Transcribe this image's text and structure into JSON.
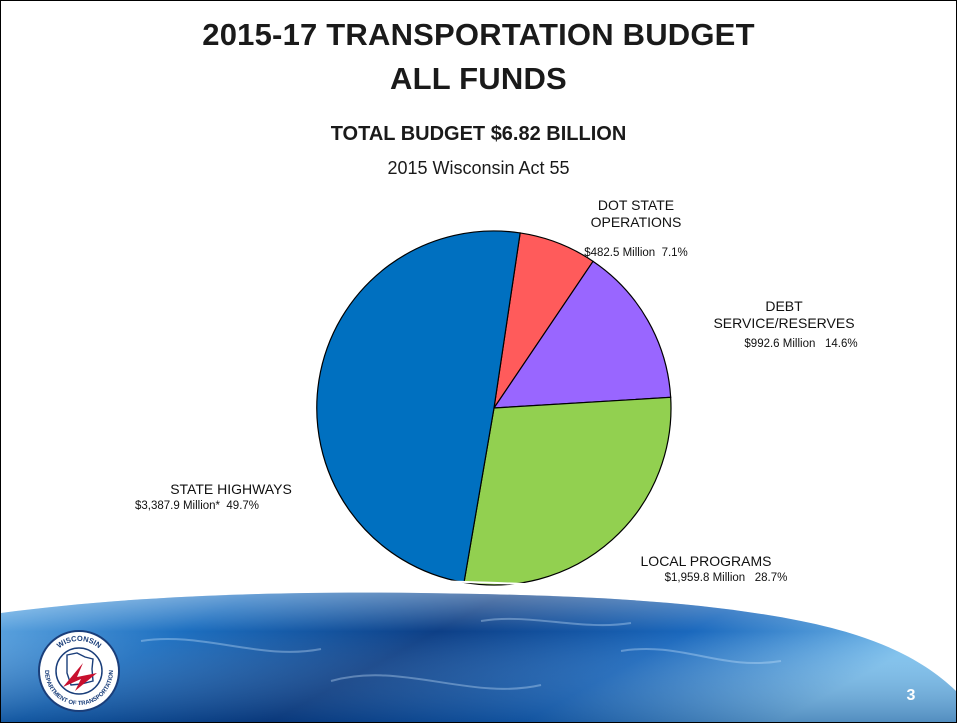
{
  "slide": {
    "title_line1": "2015-17 TRANSPORTATION BUDGET",
    "title_line2": "ALL FUNDS",
    "subtitle": "TOTAL BUDGET $6.82 BILLION",
    "caption": "2015 Wisconsin Act 55",
    "page_number": "3",
    "logo_text_top": "WISCONSIN",
    "logo_text_bottom": "DEPARTMENT OF TRANSPORTATION"
  },
  "colors": {
    "state_highways": "#0070c0",
    "dot_state_operations": "#ff5b5b",
    "debt_service_reserves": "#9966ff",
    "local_programs": "#92d050",
    "banner_blue": "#1560b0",
    "logo_red": "#c8102e"
  },
  "chart_data": {
    "type": "pie",
    "title": "2015-17 TRANSPORTATION BUDGET ALL FUNDS",
    "units": "Million",
    "slices": [
      {
        "key": "dot_state_operations",
        "label_line1": "DOT STATE",
        "label_line2": "OPERATIONS",
        "amount": "$482.5 Million",
        "percent_text": "7.1%",
        "percent": 7.1,
        "color": "#ff5b5b"
      },
      {
        "key": "debt_service_reserves",
        "label_line1": "DEBT",
        "label_line2": "SERVICE/RESERVES",
        "amount": "$992.6 Million",
        "percent_text": "14.6%",
        "percent": 14.6,
        "color": "#9966ff"
      },
      {
        "key": "local_programs",
        "label_line1": "LOCAL PROGRAMS",
        "label_line2": "",
        "amount": "$1,959.8 Million",
        "percent_text": "28.7%",
        "percent": 28.7,
        "color": "#92d050"
      },
      {
        "key": "state_highways",
        "label_line1": "STATE HIGHWAYS",
        "label_line2": "",
        "amount": "$3,387.9 Million*",
        "percent_text": "49.7%",
        "percent": 49.7,
        "color": "#0070c0"
      }
    ]
  }
}
